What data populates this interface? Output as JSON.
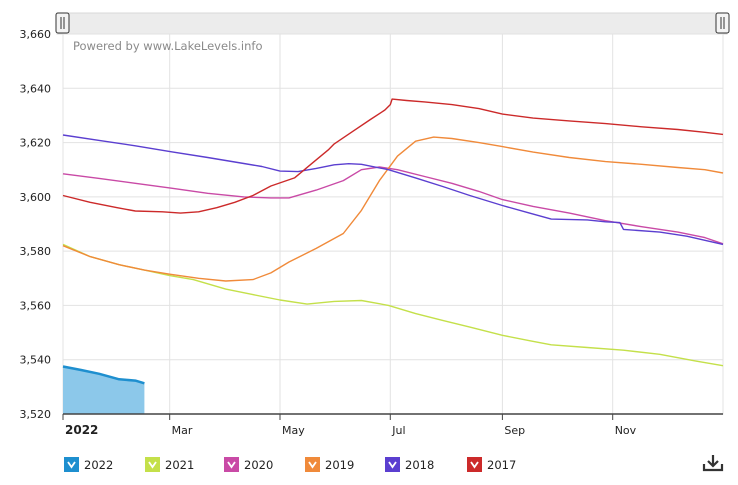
{
  "watermark": "Powered by www.LakeLevels.info",
  "colors": {
    "2022": "#1e8fcf",
    "2021": "#c4e04a",
    "2020": "#c94aa6",
    "2019": "#f08a3a",
    "2018": "#5b3fd0",
    "2017": "#cc2a2a"
  },
  "icons": {
    "legend": "check-chevron-icon",
    "download": "download-icon",
    "handle": "scroll-handle-icon"
  },
  "chart_data": {
    "type": "line",
    "title": "",
    "xlabel": "",
    "ylabel": "",
    "ylim": [
      3520,
      3660
    ],
    "yticks": [
      3520,
      3540,
      3560,
      3580,
      3600,
      3620,
      3640,
      3660
    ],
    "ytick_labels": [
      "3,520",
      "3,540",
      "3,560",
      "3,580",
      "3,600",
      "3,620",
      "3,640",
      "3,660"
    ],
    "xlim": [
      0,
      365
    ],
    "xticks": [
      {
        "day": 0,
        "label": "2022",
        "bold": true
      },
      {
        "day": 59,
        "label": "Mar",
        "bold": false
      },
      {
        "day": 120,
        "label": "May",
        "bold": false
      },
      {
        "day": 181,
        "label": "Jul",
        "bold": false
      },
      {
        "day": 243,
        "label": "Sep",
        "bold": false
      },
      {
        "day": 304,
        "label": "Nov",
        "bold": false
      }
    ],
    "legend_position": "bottom-left",
    "grid": true,
    "series": [
      {
        "name": "2022",
        "fill": true,
        "points": [
          [
            0,
            3537.5
          ],
          [
            10,
            3536.2
          ],
          [
            20,
            3534.8
          ],
          [
            31,
            3532.8
          ],
          [
            40,
            3532.3
          ],
          [
            45,
            3531.3
          ]
        ]
      },
      {
        "name": "2021",
        "points": [
          [
            0,
            3582.5
          ],
          [
            15,
            3578
          ],
          [
            31,
            3575
          ],
          [
            45,
            3573
          ],
          [
            59,
            3571
          ],
          [
            72,
            3569.5
          ],
          [
            90,
            3566
          ],
          [
            105,
            3564
          ],
          [
            120,
            3562
          ],
          [
            135,
            3560.5
          ],
          [
            150,
            3561.5
          ],
          [
            165,
            3561.8
          ],
          [
            180,
            3560
          ],
          [
            195,
            3557
          ],
          [
            210,
            3554.5
          ],
          [
            225,
            3552
          ],
          [
            243,
            3549
          ],
          [
            258,
            3547
          ],
          [
            270,
            3545.5
          ],
          [
            290,
            3544.5
          ],
          [
            310,
            3543.5
          ],
          [
            330,
            3542
          ],
          [
            350,
            3539.5
          ],
          [
            365,
            3537.8
          ]
        ]
      },
      {
        "name": "2020",
        "points": [
          [
            0,
            3608.5
          ],
          [
            20,
            3606.8
          ],
          [
            40,
            3605
          ],
          [
            60,
            3603.2
          ],
          [
            80,
            3601.3
          ],
          [
            100,
            3600
          ],
          [
            115,
            3599.6
          ],
          [
            125,
            3599.6
          ],
          [
            140,
            3602.5
          ],
          [
            155,
            3606
          ],
          [
            165,
            3610
          ],
          [
            175,
            3611
          ],
          [
            185,
            3610
          ],
          [
            200,
            3607.5
          ],
          [
            215,
            3605
          ],
          [
            230,
            3602
          ],
          [
            243,
            3599
          ],
          [
            260,
            3596.5
          ],
          [
            280,
            3594
          ],
          [
            300,
            3591.2
          ],
          [
            320,
            3589
          ],
          [
            340,
            3587
          ],
          [
            355,
            3585
          ],
          [
            365,
            3582.7
          ]
        ]
      },
      {
        "name": "2019",
        "points": [
          [
            0,
            3582
          ],
          [
            15,
            3578
          ],
          [
            31,
            3575
          ],
          [
            45,
            3573
          ],
          [
            59,
            3571.5
          ],
          [
            75,
            3570
          ],
          [
            90,
            3569
          ],
          [
            105,
            3569.5
          ],
          [
            115,
            3572
          ],
          [
            125,
            3576
          ],
          [
            140,
            3581
          ],
          [
            155,
            3586.5
          ],
          [
            165,
            3595
          ],
          [
            175,
            3606
          ],
          [
            185,
            3615
          ],
          [
            195,
            3620.5
          ],
          [
            205,
            3622
          ],
          [
            215,
            3621.5
          ],
          [
            230,
            3620
          ],
          [
            243,
            3618.5
          ],
          [
            260,
            3616.5
          ],
          [
            280,
            3614.5
          ],
          [
            300,
            3613
          ],
          [
            320,
            3612
          ],
          [
            340,
            3610.8
          ],
          [
            355,
            3610
          ],
          [
            365,
            3608.8
          ]
        ]
      },
      {
        "name": "2018",
        "points": [
          [
            0,
            3622.8
          ],
          [
            20,
            3620.8
          ],
          [
            40,
            3618.8
          ],
          [
            60,
            3616.6
          ],
          [
            80,
            3614.5
          ],
          [
            100,
            3612.3
          ],
          [
            110,
            3611.2
          ],
          [
            120,
            3609.5
          ],
          [
            130,
            3609.3
          ],
          [
            140,
            3610.5
          ],
          [
            150,
            3611.8
          ],
          [
            158,
            3612.2
          ],
          [
            165,
            3612
          ],
          [
            180,
            3610
          ],
          [
            195,
            3607
          ],
          [
            210,
            3603.8
          ],
          [
            225,
            3600.5
          ],
          [
            243,
            3596.8
          ],
          [
            258,
            3594
          ],
          [
            270,
            3591.8
          ],
          [
            290,
            3591.5
          ],
          [
            300,
            3590.8
          ],
          [
            308,
            3590.5
          ],
          [
            310,
            3588
          ],
          [
            330,
            3587
          ],
          [
            345,
            3585.5
          ],
          [
            355,
            3584
          ],
          [
            365,
            3582.5
          ]
        ]
      },
      {
        "name": "2017",
        "points": [
          [
            0,
            3600.5
          ],
          [
            15,
            3598
          ],
          [
            30,
            3596
          ],
          [
            40,
            3594.8
          ],
          [
            55,
            3594.5
          ],
          [
            65,
            3594
          ],
          [
            75,
            3594.5
          ],
          [
            85,
            3596
          ],
          [
            95,
            3598
          ],
          [
            105,
            3600.5
          ],
          [
            115,
            3604
          ],
          [
            128,
            3607
          ],
          [
            138,
            3612.5
          ],
          [
            147,
            3617.5
          ],
          [
            150,
            3619.5
          ],
          [
            160,
            3624
          ],
          [
            170,
            3628.5
          ],
          [
            178,
            3632
          ],
          [
            181,
            3634
          ],
          [
            182,
            3636
          ],
          [
            190,
            3635.5
          ],
          [
            200,
            3635
          ],
          [
            215,
            3634
          ],
          [
            230,
            3632.5
          ],
          [
            243,
            3630.5
          ],
          [
            260,
            3629
          ],
          [
            280,
            3628
          ],
          [
            300,
            3627
          ],
          [
            320,
            3625.8
          ],
          [
            340,
            3624.8
          ],
          [
            355,
            3623.8
          ],
          [
            365,
            3623
          ]
        ]
      }
    ]
  }
}
